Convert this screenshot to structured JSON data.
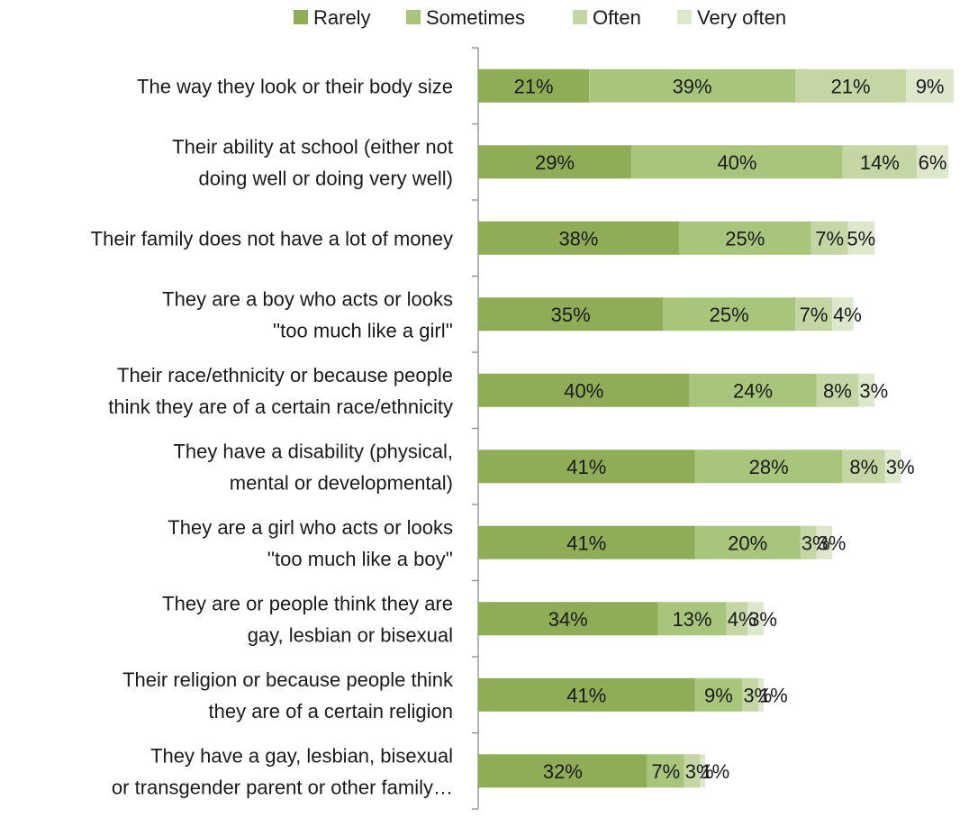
{
  "chart_data": {
    "type": "bar",
    "orientation": "horizontal",
    "stacked": true,
    "legend_position": "top",
    "categories": [
      [
        "The way they look or their body size"
      ],
      [
        "Their ability at school (either not",
        "doing well or doing very well)"
      ],
      [
        "Their family does not have a lot of money"
      ],
      [
        "They are a boy who acts or looks",
        "''too much like a girl''"
      ],
      [
        "Their race/ethnicity or because people",
        "think they are of a certain race/ethnicity"
      ],
      [
        "They have a disability (physical,",
        "mental or developmental)"
      ],
      [
        "They are a girl who acts or looks",
        "''too much like a boy''"
      ],
      [
        "They are or people think they are",
        "gay, lesbian or bisexual"
      ],
      [
        "Their religion or because people think",
        "they are of a certain religion"
      ],
      [
        "They have a gay, lesbian, bisexual",
        "or transgender parent or other family…"
      ]
    ],
    "series": [
      {
        "name": "Rarely",
        "color": "#8ead56",
        "values": [
          21,
          29,
          38,
          35,
          40,
          41,
          41,
          34,
          41,
          32
        ]
      },
      {
        "name": "Sometimes",
        "color": "#a8c57c",
        "values": [
          39,
          40,
          25,
          25,
          24,
          28,
          20,
          13,
          9,
          7
        ]
      },
      {
        "name": "Often",
        "color": "#c3d6a4",
        "values": [
          21,
          14,
          7,
          7,
          8,
          8,
          3,
          4,
          3,
          3
        ]
      },
      {
        "name": "Very often",
        "color": "#dce7cb",
        "values": [
          9,
          6,
          5,
          4,
          3,
          3,
          3,
          3,
          1,
          1
        ]
      }
    ],
    "value_suffix": "%",
    "xlim": [
      0,
      92
    ],
    "grid": false
  }
}
